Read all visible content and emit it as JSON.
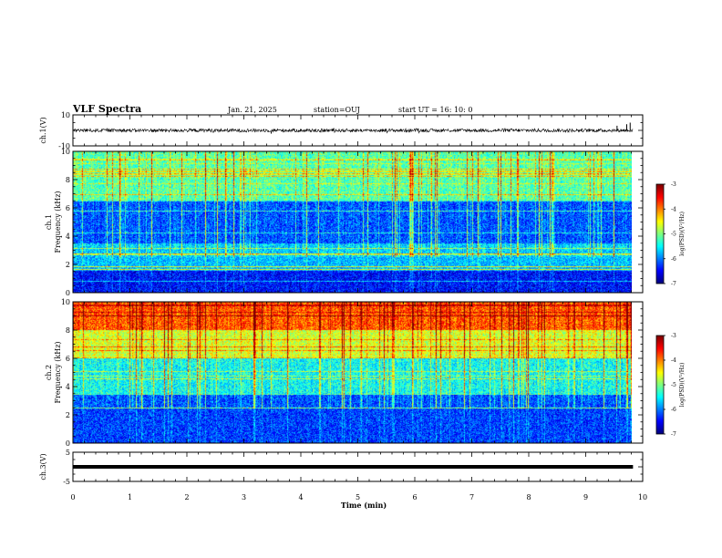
{
  "header": {
    "title": "VLF Spectra",
    "date": "Jan. 21, 2025",
    "station": "station=OUJ",
    "start": "start UT =  16: 10: 0"
  },
  "chart_data": [
    {
      "type": "line",
      "panel": "ch1-waveform",
      "ylabel": "ch.1(V)",
      "yticks": [
        "10",
        "-10"
      ],
      "ylim": [
        -10,
        10
      ],
      "x_range_min": [
        0,
        9.83
      ],
      "level": 0,
      "spikes": [
        {
          "x": 9.55,
          "y": 3
        },
        {
          "x": 9.72,
          "y": 4
        },
        {
          "x": 9.78,
          "y": 5
        }
      ]
    },
    {
      "type": "heatmap",
      "panel": "ch1-spectrogram",
      "ylabel": "ch.1",
      "ylabel2": "Frequency (kHz)",
      "ylim": [
        0,
        10
      ],
      "yticks": [
        "10",
        "8",
        "6",
        "4",
        "2",
        "0"
      ],
      "x_range_min": [
        0,
        9.83
      ],
      "colorbar": {
        "label": "log(PSD)(V²/Hz)",
        "ticks": [
          "-3",
          "-4",
          "-5",
          "-6",
          "-7"
        ],
        "range": [
          -7,
          -3
        ]
      },
      "description_bands_khz": [
        [
          0,
          1.5,
          -6.5
        ],
        [
          1.5,
          3.5,
          -5.8
        ],
        [
          3.5,
          6.5,
          -6.3
        ],
        [
          6.5,
          10,
          -5.3
        ]
      ]
    },
    {
      "type": "heatmap",
      "panel": "ch2-spectrogram",
      "ylabel": "ch.2",
      "ylabel2": "Frequency (kHz)",
      "ylim": [
        0,
        10
      ],
      "yticks": [
        "10",
        "8",
        "6",
        "4",
        "2",
        "0"
      ],
      "x_range_min": [
        0,
        9.83
      ],
      "colorbar": {
        "label": "log(PSD)(V²/Hz)",
        "ticks": [
          "-3",
          "-4",
          "-5",
          "-6",
          "-7"
        ],
        "range": [
          -7,
          -3
        ]
      },
      "description_bands_khz": [
        [
          0,
          3.5,
          -6.3
        ],
        [
          3.5,
          6,
          -5.6
        ],
        [
          6,
          8,
          -4.8
        ],
        [
          8,
          10,
          -4.0
        ]
      ]
    },
    {
      "type": "line",
      "panel": "ch3-waveform",
      "ylabel": "ch.3(V)",
      "yticks": [
        "5",
        "-5"
      ],
      "ylim": [
        -5,
        5
      ],
      "x_range_min": [
        0,
        9.83
      ],
      "level": 0
    }
  ],
  "xaxis": {
    "label": "Time (min)",
    "ticks": [
      "0",
      "1",
      "2",
      "3",
      "4",
      "5",
      "6",
      "7",
      "8",
      "9",
      "10"
    ],
    "range": [
      0,
      10
    ]
  },
  "colors": {
    "axis": "#000000",
    "background": "#ffffff"
  }
}
